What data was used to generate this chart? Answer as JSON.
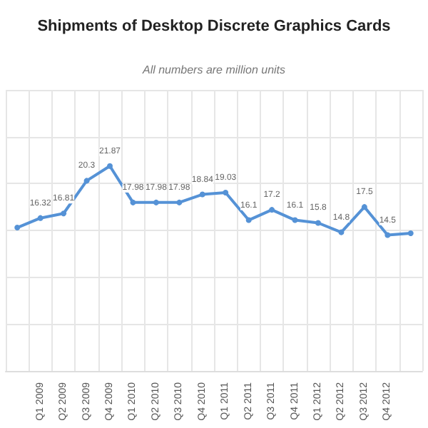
{
  "chart_data": {
    "type": "line",
    "title": "Shipments of Desktop Discrete Graphics Cards",
    "annotations": [
      "All numbers are million units"
    ],
    "categories": [
      null,
      "Q1 2009",
      "Q2 2009",
      "Q3 2009",
      "Q4 2009",
      "Q1 2010",
      "Q2 2010",
      "Q3 2010",
      "Q4 2010",
      "Q1 2011",
      "Q2 2011",
      "Q3 2011",
      "Q4 2011",
      "Q1 2012",
      "Q2 2012",
      "Q3 2012",
      "Q4 2012",
      null
    ],
    "series": [
      {
        "color": "#5592d6",
        "values": [
          15.3,
          16.32,
          16.81,
          20.3,
          21.87,
          17.98,
          17.98,
          17.98,
          18.84,
          19.03,
          16.1,
          17.2,
          16.1,
          15.8,
          14.8,
          17.5,
          14.5,
          14.7
        ],
        "value_labels": [
          null,
          "16.32",
          "16.81",
          "20.3",
          "21.87",
          "17.98",
          "17.98",
          "17.98",
          "18.84",
          "19.03",
          "16.1",
          "17.2",
          "16.1",
          "15.8",
          "14.8",
          "17.5",
          "14.5",
          null
        ]
      }
    ],
    "ylim": [
      0,
      30
    ],
    "yticks": [
      {
        "value": 0,
        "label": null
      },
      {
        "value": 5,
        "label": null
      },
      {
        "value": 10,
        "label": null
      },
      {
        "value": 15,
        "label": null
      },
      {
        "value": 20,
        "label": null
      },
      {
        "value": 25,
        "label": null
      },
      {
        "value": 30,
        "label": null
      }
    ],
    "tick_labels": "x",
    "grid": true,
    "marker": "circle",
    "line_style": "solid"
  }
}
